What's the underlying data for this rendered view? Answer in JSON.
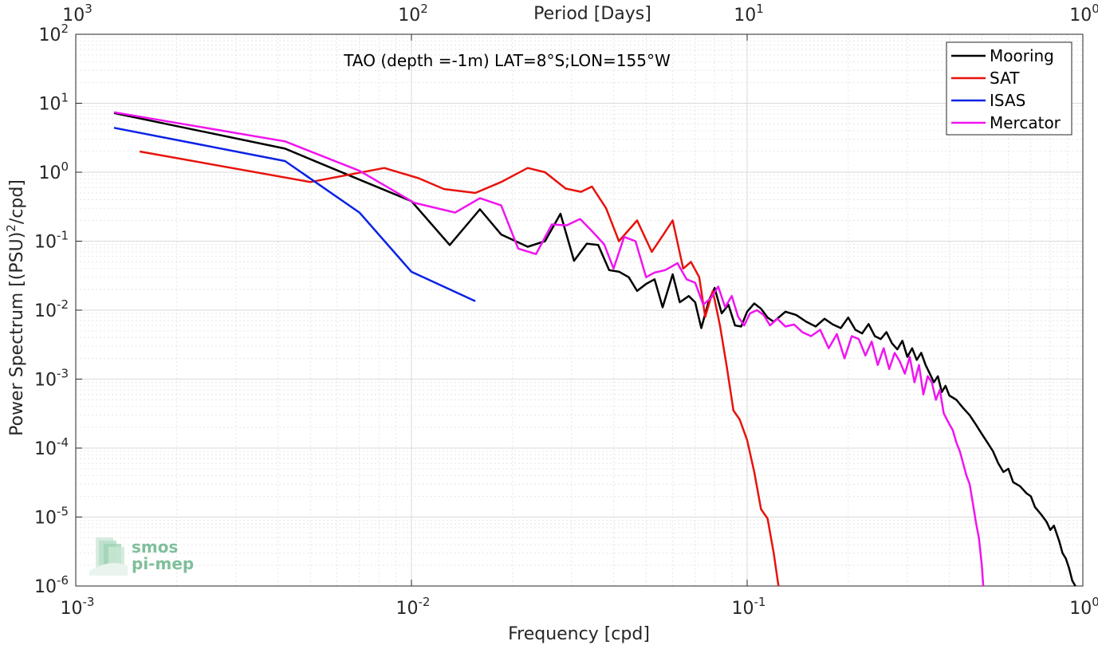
{
  "chart_data": {
    "type": "line",
    "title": "TAO (depth =-1m) LAT=8°S;LON=155°W",
    "xlabel": "Frequency [cpd]",
    "ylabel_main": "Power Spectrum [(PSU)",
    "ylabel_sup": "2",
    "ylabel_tail": "/cpd]",
    "top_xlabel": "Period [Days]",
    "x_scale": "log",
    "y_scale": "log",
    "xlim": [
      0.001,
      1
    ],
    "ylim": [
      1e-06,
      100
    ],
    "grid": true,
    "legend_position": "top-right",
    "x_ticks": [
      {
        "value": 0.001,
        "base": "10",
        "exp": "-3"
      },
      {
        "value": 0.01,
        "base": "10",
        "exp": "-2"
      },
      {
        "value": 0.1,
        "base": "10",
        "exp": "-1"
      },
      {
        "value": 1,
        "base": "10",
        "exp": "0"
      }
    ],
    "top_ticks": [
      {
        "value": 0.001,
        "base": "10",
        "exp": "3"
      },
      {
        "value": 0.01,
        "base": "10",
        "exp": "2"
      },
      {
        "value": 0.1,
        "base": "10",
        "exp": "1"
      },
      {
        "value": 1,
        "base": "10",
        "exp": "0"
      }
    ],
    "y_ticks": [
      {
        "value": 100,
        "base": "10",
        "exp": "2"
      },
      {
        "value": 10,
        "base": "10",
        "exp": "1"
      },
      {
        "value": 1,
        "base": "10",
        "exp": "0"
      },
      {
        "value": 0.1,
        "base": "10",
        "exp": "-1"
      },
      {
        "value": 0.01,
        "base": "10",
        "exp": "-2"
      },
      {
        "value": 0.001,
        "base": "10",
        "exp": "-3"
      },
      {
        "value": 0.0001,
        "base": "10",
        "exp": "-4"
      },
      {
        "value": 1e-05,
        "base": "10",
        "exp": "-5"
      },
      {
        "value": 1e-06,
        "base": "10",
        "exp": "-6"
      }
    ],
    "series": [
      {
        "name": "Mooring",
        "color": "#000000",
        "points": [
          [
            0.0013,
            7.2
          ],
          [
            0.0042,
            2.2
          ],
          [
            0.007,
            0.78
          ],
          [
            0.01,
            0.38
          ],
          [
            0.013,
            0.088
          ],
          [
            0.016,
            0.29
          ],
          [
            0.0185,
            0.125
          ],
          [
            0.0222,
            0.083
          ],
          [
            0.025,
            0.1
          ],
          [
            0.0278,
            0.25
          ],
          [
            0.0305,
            0.052
          ],
          [
            0.0333,
            0.092
          ],
          [
            0.036,
            0.088
          ],
          [
            0.0388,
            0.038
          ],
          [
            0.0416,
            0.036
          ],
          [
            0.0444,
            0.03
          ],
          [
            0.047,
            0.019
          ],
          [
            0.05,
            0.024
          ],
          [
            0.053,
            0.028
          ],
          [
            0.056,
            0.011
          ],
          [
            0.06,
            0.033
          ],
          [
            0.063,
            0.013
          ],
          [
            0.067,
            0.016
          ],
          [
            0.07,
            0.013
          ],
          [
            0.073,
            0.0055
          ],
          [
            0.077,
            0.014
          ],
          [
            0.08,
            0.021
          ],
          [
            0.084,
            0.009
          ],
          [
            0.088,
            0.012
          ],
          [
            0.092,
            0.006
          ],
          [
            0.096,
            0.0058
          ],
          [
            0.1,
            0.0095
          ],
          [
            0.105,
            0.0125
          ],
          [
            0.11,
            0.0105
          ],
          [
            0.115,
            0.0078
          ],
          [
            0.12,
            0.0068
          ],
          [
            0.13,
            0.0095
          ],
          [
            0.14,
            0.0085
          ],
          [
            0.15,
            0.0068
          ],
          [
            0.16,
            0.0058
          ],
          [
            0.17,
            0.0075
          ],
          [
            0.18,
            0.0062
          ],
          [
            0.19,
            0.0055
          ],
          [
            0.2,
            0.0078
          ],
          [
            0.21,
            0.0052
          ],
          [
            0.22,
            0.0046
          ],
          [
            0.23,
            0.0063
          ],
          [
            0.24,
            0.0042
          ],
          [
            0.25,
            0.0038
          ],
          [
            0.26,
            0.0048
          ],
          [
            0.27,
            0.0033
          ],
          [
            0.28,
            0.0027
          ],
          [
            0.29,
            0.0036
          ],
          [
            0.3,
            0.0021
          ],
          [
            0.31,
            0.0028
          ],
          [
            0.32,
            0.0019
          ],
          [
            0.33,
            0.0024
          ],
          [
            0.34,
            0.0016
          ],
          [
            0.35,
            0.0012
          ],
          [
            0.36,
            0.0009
          ],
          [
            0.37,
            0.0011
          ],
          [
            0.38,
            0.00065
          ],
          [
            0.39,
            0.0008
          ],
          [
            0.4,
            0.00058
          ],
          [
            0.42,
            0.0005
          ],
          [
            0.44,
            0.00038
          ],
          [
            0.46,
            0.0003
          ],
          [
            0.48,
            0.00022
          ],
          [
            0.5,
            0.00016
          ],
          [
            0.52,
            0.00012
          ],
          [
            0.54,
            9e-05
          ],
          [
            0.56,
            6e-05
          ],
          [
            0.58,
            4.5e-05
          ],
          [
            0.6,
            5e-05
          ],
          [
            0.62,
            3.2e-05
          ],
          [
            0.65,
            2.8e-05
          ],
          [
            0.68,
            2.2e-05
          ],
          [
            0.7,
            2e-05
          ],
          [
            0.72,
            1.4e-05
          ],
          [
            0.75,
            1.1e-05
          ],
          [
            0.78,
            8.5e-06
          ],
          [
            0.8,
            6.5e-06
          ],
          [
            0.82,
            7.5e-06
          ],
          [
            0.85,
            4.5e-06
          ],
          [
            0.87,
            3e-06
          ],
          [
            0.89,
            2.5e-06
          ],
          [
            0.91,
            1.8e-06
          ],
          [
            0.93,
            1.2e-06
          ],
          [
            0.95,
            1e-06
          ]
        ]
      },
      {
        "name": "SAT",
        "color": "#e8120c",
        "points": [
          [
            0.00155,
            2.0
          ],
          [
            0.005,
            0.72
          ],
          [
            0.0083,
            1.15
          ],
          [
            0.0105,
            0.82
          ],
          [
            0.0125,
            0.57
          ],
          [
            0.0155,
            0.5
          ],
          [
            0.0185,
            0.72
          ],
          [
            0.0222,
            1.15
          ],
          [
            0.025,
            1.0
          ],
          [
            0.0288,
            0.58
          ],
          [
            0.032,
            0.52
          ],
          [
            0.0345,
            0.62
          ],
          [
            0.038,
            0.3
          ],
          [
            0.0415,
            0.1
          ],
          [
            0.047,
            0.2
          ],
          [
            0.052,
            0.07
          ],
          [
            0.056,
            0.12
          ],
          [
            0.06,
            0.2
          ],
          [
            0.0645,
            0.04
          ],
          [
            0.068,
            0.05
          ],
          [
            0.072,
            0.03
          ],
          [
            0.075,
            0.008
          ],
          [
            0.079,
            0.019
          ],
          [
            0.083,
            0.006
          ],
          [
            0.087,
            0.0015
          ],
          [
            0.091,
            0.00035
          ],
          [
            0.095,
            0.00026
          ],
          [
            0.1,
            0.00013
          ],
          [
            0.105,
            4.5e-05
          ],
          [
            0.11,
            1.3e-05
          ],
          [
            0.115,
            9.5e-06
          ],
          [
            0.12,
            3e-06
          ],
          [
            0.124,
            1e-06
          ]
        ]
      },
      {
        "name": "ISAS",
        "color": "#0a22e6",
        "points": [
          [
            0.0013,
            4.4
          ],
          [
            0.0042,
            1.45
          ],
          [
            0.007,
            0.26
          ],
          [
            0.01,
            0.036
          ],
          [
            0.0155,
            0.0135
          ]
        ]
      },
      {
        "name": "Mercator",
        "color": "#f014f0",
        "points": [
          [
            0.0013,
            7.4
          ],
          [
            0.0042,
            2.8
          ],
          [
            0.007,
            1.05
          ],
          [
            0.0102,
            0.36
          ],
          [
            0.0135,
            0.26
          ],
          [
            0.016,
            0.42
          ],
          [
            0.0185,
            0.33
          ],
          [
            0.0208,
            0.078
          ],
          [
            0.0235,
            0.065
          ],
          [
            0.0262,
            0.175
          ],
          [
            0.029,
            0.17
          ],
          [
            0.0318,
            0.21
          ],
          [
            0.0345,
            0.14
          ],
          [
            0.0375,
            0.09
          ],
          [
            0.04,
            0.04
          ],
          [
            0.043,
            0.115
          ],
          [
            0.0465,
            0.1
          ],
          [
            0.05,
            0.03
          ],
          [
            0.053,
            0.035
          ],
          [
            0.057,
            0.038
          ],
          [
            0.062,
            0.048
          ],
          [
            0.066,
            0.028
          ],
          [
            0.07,
            0.025
          ],
          [
            0.074,
            0.012
          ],
          [
            0.078,
            0.015
          ],
          [
            0.082,
            0.022
          ],
          [
            0.086,
            0.011
          ],
          [
            0.09,
            0.016
          ],
          [
            0.094,
            0.008
          ],
          [
            0.098,
            0.006
          ],
          [
            0.102,
            0.009
          ],
          [
            0.107,
            0.01
          ],
          [
            0.112,
            0.0085
          ],
          [
            0.117,
            0.006
          ],
          [
            0.123,
            0.0075
          ],
          [
            0.13,
            0.0058
          ],
          [
            0.138,
            0.0062
          ],
          [
            0.146,
            0.0048
          ],
          [
            0.155,
            0.0042
          ],
          [
            0.165,
            0.0052
          ],
          [
            0.175,
            0.0028
          ],
          [
            0.185,
            0.0045
          ],
          [
            0.195,
            0.002
          ],
          [
            0.205,
            0.0042
          ],
          [
            0.215,
            0.0038
          ],
          [
            0.225,
            0.0022
          ],
          [
            0.235,
            0.0035
          ],
          [
            0.245,
            0.0016
          ],
          [
            0.255,
            0.0028
          ],
          [
            0.265,
            0.0014
          ],
          [
            0.275,
            0.0024
          ],
          [
            0.285,
            0.0018
          ],
          [
            0.295,
            0.0012
          ],
          [
            0.305,
            0.0021
          ],
          [
            0.315,
            0.0009
          ],
          [
            0.325,
            0.0016
          ],
          [
            0.335,
            0.0006
          ],
          [
            0.345,
            0.0011
          ],
          [
            0.355,
            0.0009
          ],
          [
            0.365,
            0.0005
          ],
          [
            0.375,
            0.0007
          ],
          [
            0.385,
            0.00032
          ],
          [
            0.395,
            0.00025
          ],
          [
            0.41,
            0.00018
          ],
          [
            0.42,
            0.00012
          ],
          [
            0.43,
            9e-05
          ],
          [
            0.44,
            6e-05
          ],
          [
            0.45,
            4e-05
          ],
          [
            0.46,
            3e-05
          ],
          [
            0.47,
            1.6e-05
          ],
          [
            0.48,
            8.5e-06
          ],
          [
            0.49,
            5e-06
          ],
          [
            0.5,
            2e-06
          ],
          [
            0.505,
            1e-06
          ]
        ]
      }
    ]
  },
  "logo": {
    "line1": "smos",
    "line2": "pi-mep"
  }
}
